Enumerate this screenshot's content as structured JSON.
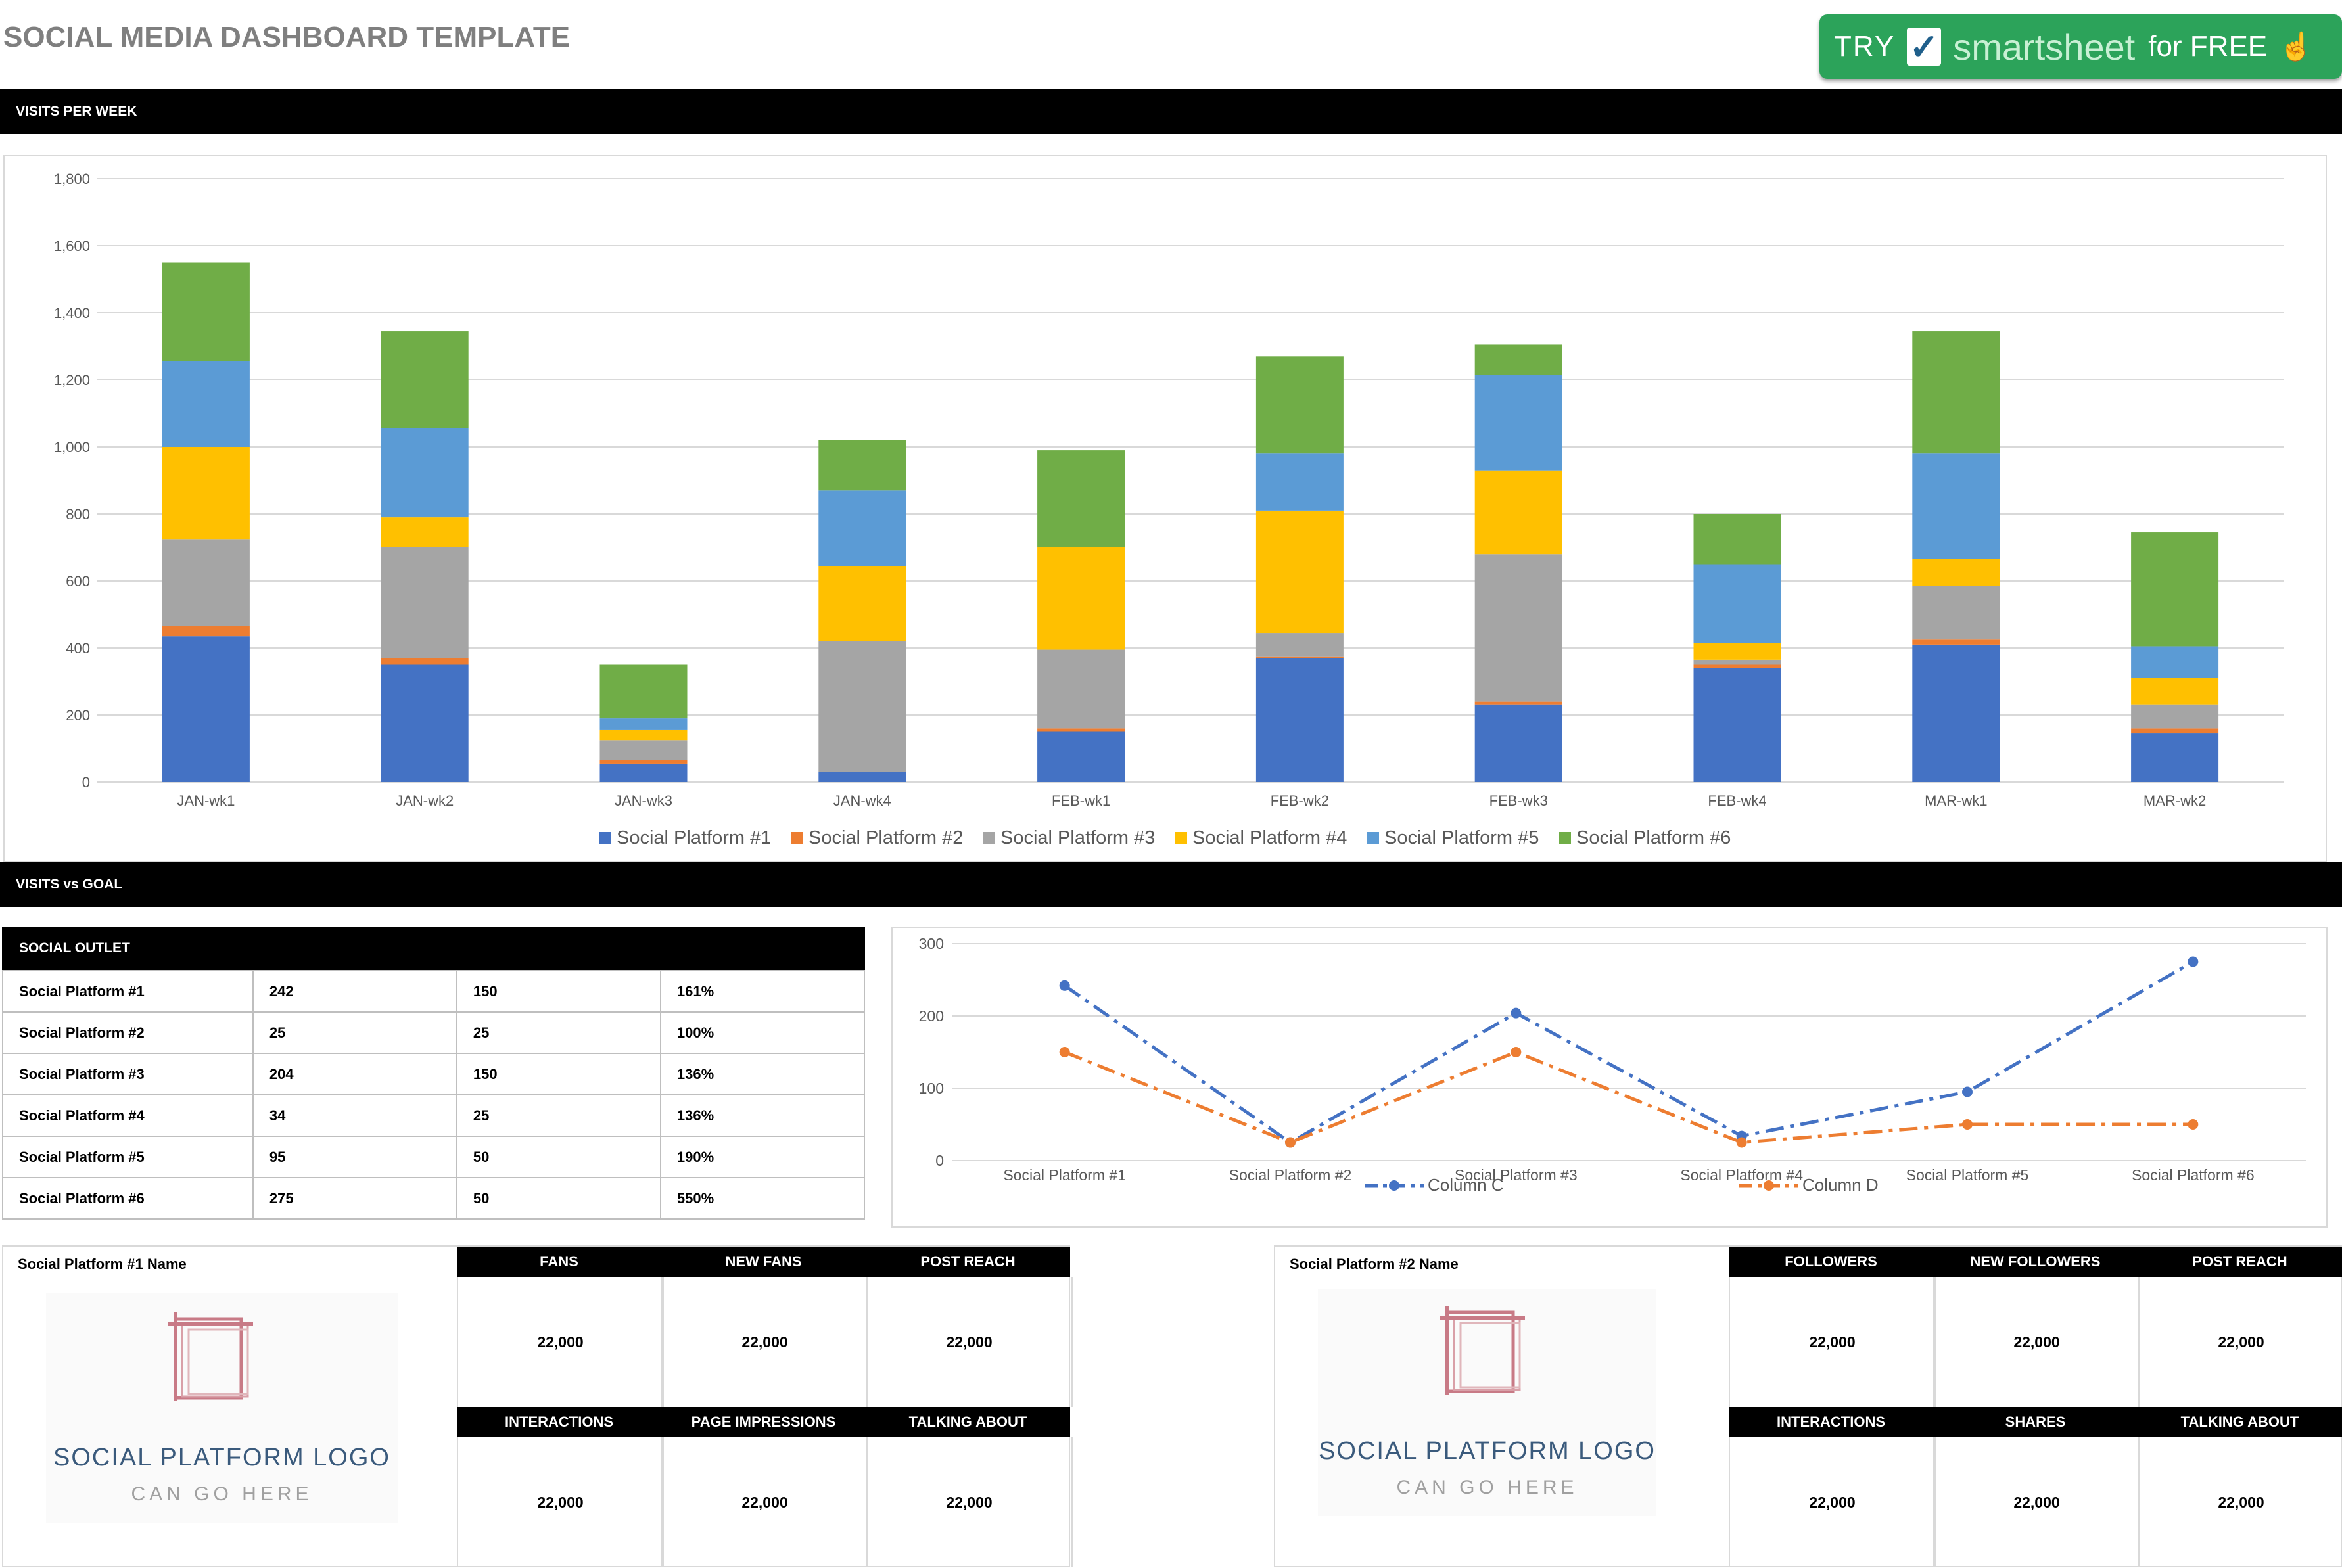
{
  "title": "SOCIAL MEDIA DASHBOARD TEMPLATE",
  "cta": {
    "try": "TRY",
    "brand": "smartsheet",
    "free": "for FREE"
  },
  "sections": {
    "visits_per_week": "VISITS PER WEEK",
    "visits_vs_goal": "VISITS vs GOAL"
  },
  "chart_data": [
    {
      "type": "bar",
      "stacked": true,
      "categories": [
        "JAN-wk1",
        "JAN-wk2",
        "JAN-wk3",
        "JAN-wk4",
        "FEB-wk1",
        "FEB-wk2",
        "FEB-wk3",
        "FEB-wk4",
        "MAR-wk1",
        "MAR-wk2"
      ],
      "ylim": [
        0,
        1800
      ],
      "yticks": [
        "0",
        "200",
        "400",
        "600",
        "800",
        "1,000",
        "1,200",
        "1,400",
        "1,600",
        "1,800"
      ],
      "grid": true,
      "legend": "bottom",
      "series": [
        {
          "name": "Social Platform #1",
          "color": "#4472c4",
          "values": [
            435,
            350,
            55,
            30,
            150,
            370,
            230,
            340,
            410,
            145
          ]
        },
        {
          "name": "Social Platform #2",
          "color": "#ed7d31",
          "values": [
            30,
            20,
            10,
            0,
            10,
            5,
            10,
            10,
            15,
            15
          ]
        },
        {
          "name": "Social Platform #3",
          "color": "#a5a5a5",
          "values": [
            260,
            330,
            60,
            390,
            235,
            70,
            440,
            15,
            160,
            70
          ]
        },
        {
          "name": "Social Platform #4",
          "color": "#ffc000",
          "values": [
            275,
            90,
            30,
            225,
            305,
            365,
            250,
            50,
            80,
            80
          ]
        },
        {
          "name": "Social Platform #5",
          "color": "#5b9bd5",
          "values": [
            255,
            265,
            35,
            225,
            0,
            170,
            285,
            235,
            315,
            95
          ]
        },
        {
          "name": "Social Platform #6",
          "color": "#70ad47",
          "values": [
            295,
            290,
            160,
            150,
            290,
            290,
            90,
            150,
            365,
            340
          ]
        }
      ]
    },
    {
      "type": "line",
      "categories": [
        "Social Platform #1",
        "Social Platform #2",
        "Social Platform #3",
        "Social Platform #4",
        "Social Platform #5",
        "Social Platform #6"
      ],
      "ylim": [
        0,
        300
      ],
      "yticks": [
        "0",
        "100",
        "200",
        "300"
      ],
      "grid": true,
      "legend": "bottom",
      "series": [
        {
          "name": "Column C",
          "color": "#4472c4",
          "values": [
            242,
            25,
            204,
            34,
            95,
            275
          ]
        },
        {
          "name": "Column D",
          "color": "#ed7d31",
          "values": [
            150,
            25,
            150,
            25,
            50,
            50
          ]
        }
      ]
    }
  ],
  "outlet": {
    "header": "SOCIAL OUTLET",
    "rows": [
      {
        "name": "Social Platform #1",
        "visits": "242",
        "goal": "150",
        "pct": "161%"
      },
      {
        "name": "Social Platform #2",
        "visits": "25",
        "goal": "25",
        "pct": "100%"
      },
      {
        "name": "Social Platform #3",
        "visits": "204",
        "goal": "150",
        "pct": "136%"
      },
      {
        "name": "Social Platform #4",
        "visits": "34",
        "goal": "25",
        "pct": "136%"
      },
      {
        "name": "Social Platform #5",
        "visits": "95",
        "goal": "50",
        "pct": "190%"
      },
      {
        "name": "Social Platform #6",
        "visits": "275",
        "goal": "50",
        "pct": "550%"
      }
    ]
  },
  "platform1": {
    "name": "Social Platform #1 Name",
    "logo_title": "SOCIAL PLATFORM LOGO",
    "logo_sub": "CAN GO HERE",
    "row1": [
      {
        "label": "FANS",
        "value": "22,000"
      },
      {
        "label": "NEW FANS",
        "value": "22,000"
      },
      {
        "label": "POST REACH",
        "value": "22,000"
      }
    ],
    "row2": [
      {
        "label": "INTERACTIONS",
        "value": "22,000"
      },
      {
        "label": "PAGE IMPRESSIONS",
        "value": "22,000"
      },
      {
        "label": "TALKING ABOUT",
        "value": "22,000"
      }
    ]
  },
  "platform2": {
    "name": "Social Platform #2 Name",
    "logo_title": "SOCIAL PLATFORM LOGO",
    "logo_sub": "CAN GO HERE",
    "row1": [
      {
        "label": "FOLLOWERS",
        "value": "22,000"
      },
      {
        "label": "NEW FOLLOWERS",
        "value": "22,000"
      },
      {
        "label": "POST REACH",
        "value": "22,000"
      }
    ],
    "row2": [
      {
        "label": "INTERACTIONS",
        "value": "22,000"
      },
      {
        "label": "SHARES",
        "value": "22,000"
      },
      {
        "label": "TALKING ABOUT",
        "value": "22,000"
      }
    ]
  }
}
